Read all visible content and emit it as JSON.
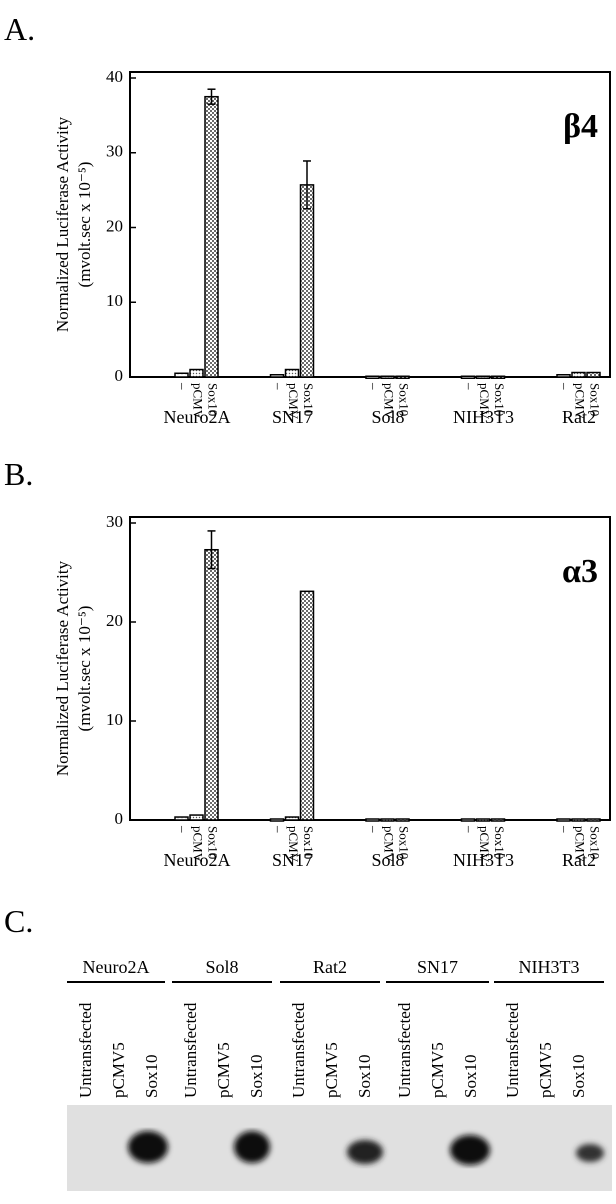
{
  "chart_data": [
    {
      "type": "bar",
      "panel": "A.",
      "annotation": "β4",
      "y_label": "Normalized Luciferase Activity",
      "y_label_2": "(mvolt.sec x 10⁻⁵)",
      "categories": [
        "Neuro2A",
        "SN17",
        "Sol8",
        "NIH3T3",
        "Rat2"
      ],
      "series": [
        {
          "name": "–",
          "values": [
            0.5,
            0.3,
            0.1,
            0.1,
            0.3
          ]
        },
        {
          "name": "pCMV",
          "values": [
            1.0,
            1.0,
            0.1,
            0.1,
            0.6
          ]
        },
        {
          "name": "Sox10",
          "values": [
            37.5,
            25.7,
            0.1,
            0.1,
            0.6
          ],
          "errors": [
            1.0,
            3.2,
            null,
            null,
            null
          ]
        }
      ],
      "ylim": [
        0,
        40
      ],
      "yticks": [
        0,
        10,
        20,
        30,
        40
      ]
    },
    {
      "type": "bar",
      "panel": "B.",
      "annotation": "α3",
      "y_label": "Normalized Luciferase Activity",
      "y_label_2": "(mvolt.sec x 10⁻⁵)",
      "categories": [
        "Neuro2A",
        "SN17",
        "Sol8",
        "NIH3T3",
        "Rat2"
      ],
      "series": [
        {
          "name": "–",
          "values": [
            0.3,
            0.1,
            0.1,
            0.1,
            0.1
          ]
        },
        {
          "name": "pCMV",
          "values": [
            0.5,
            0.3,
            0.1,
            0.1,
            0.1
          ]
        },
        {
          "name": "Sox10",
          "values": [
            27.3,
            23.1,
            0.1,
            0.1,
            0.1
          ],
          "errors": [
            1.9,
            null,
            null,
            null,
            null
          ]
        }
      ],
      "ylim": [
        0,
        30
      ],
      "yticks": [
        0,
        10,
        20,
        30
      ]
    }
  ],
  "blot": {
    "panel": "C.",
    "groups": [
      "Neuro2A",
      "Sol8",
      "Rat2",
      "SN17",
      "NIH3T3"
    ],
    "lanes": [
      "Untransfected",
      "pCMV5",
      "Sox10"
    ]
  }
}
